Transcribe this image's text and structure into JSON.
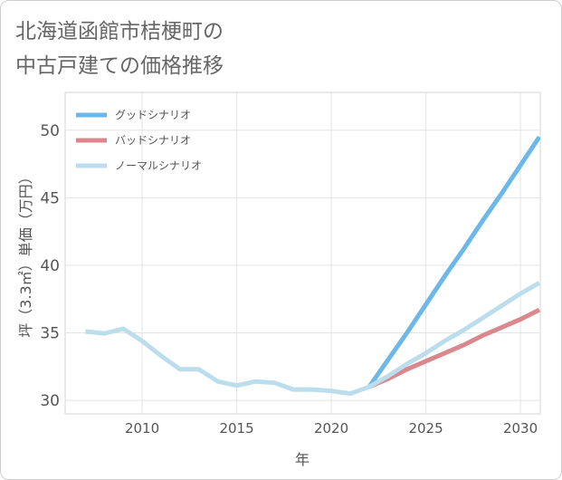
{
  "colors": {
    "good": "#6cb8e8",
    "bad": "#da878e",
    "normal": "#bcdeec",
    "text": "#555555",
    "grid": "#e4e4e4"
  },
  "chart_data": {
    "type": "line",
    "title": [
      "北海道函館市桔梗町の",
      "中古戸建ての価格推移"
    ],
    "xlabel": "年",
    "ylabel": "坪（3.3㎡）単価（万円）",
    "xlim": [
      2005.93,
      2031.05
    ],
    "ylim": [
      29.0,
      52.8
    ],
    "xticks": [
      2010,
      2015,
      2020,
      2025,
      2030
    ],
    "yticks": [
      30,
      35,
      40,
      45,
      50
    ],
    "grid": true,
    "legend": "top-left",
    "x": [
      2007,
      2008,
      2009,
      2010,
      2011,
      2012,
      2013,
      2014,
      2015,
      2016,
      2017,
      2018,
      2019,
      2020,
      2021,
      2022,
      2023,
      2024,
      2025,
      2026,
      2027,
      2028,
      2029,
      2030,
      2031
    ],
    "series": [
      {
        "name": "グッドシナリオ",
        "color": "#6cb8e8",
        "values": [
          null,
          null,
          null,
          null,
          null,
          null,
          null,
          null,
          null,
          null,
          null,
          null,
          null,
          null,
          null,
          31.0,
          33.0,
          35.0,
          37.1,
          39.2,
          41.2,
          43.3,
          45.3,
          47.4,
          49.5
        ]
      },
      {
        "name": "バッドシナリオ",
        "color": "#da878e",
        "values": [
          null,
          null,
          null,
          null,
          null,
          null,
          null,
          null,
          null,
          null,
          null,
          null,
          null,
          null,
          null,
          31.0,
          31.6,
          32.3,
          32.9,
          33.5,
          34.1,
          34.8,
          35.4,
          36.0,
          36.7
        ]
      },
      {
        "name": "ノーマルシナリオ",
        "color": "#bcdeec",
        "values": [
          35.1,
          34.95,
          35.3,
          34.4,
          33.3,
          32.3,
          32.3,
          31.4,
          31.1,
          31.4,
          31.3,
          30.8,
          30.8,
          30.7,
          30.5,
          31.0,
          31.8,
          32.7,
          33.5,
          34.4,
          35.2,
          36.1,
          37.0,
          37.9,
          38.7
        ]
      }
    ]
  }
}
